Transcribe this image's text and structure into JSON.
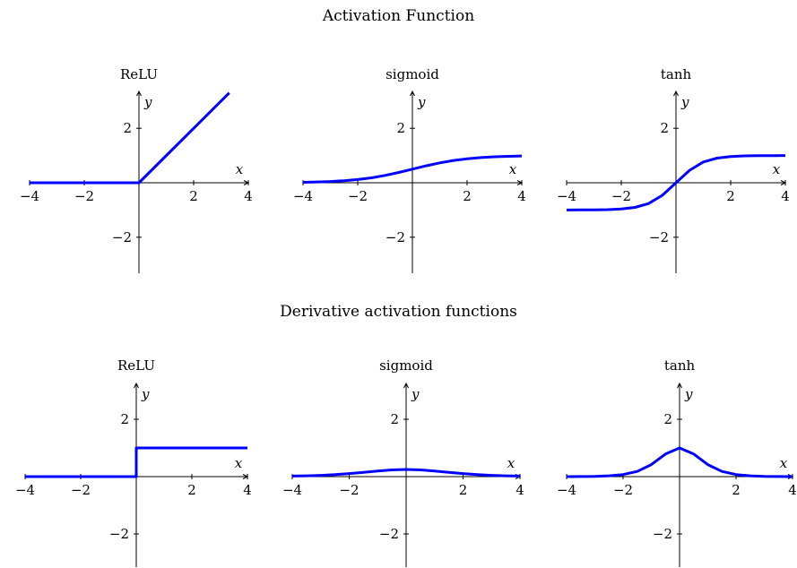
{
  "figure": {
    "row_titles": [
      "Activation Function",
      "Derivative activation functions"
    ]
  },
  "chart_data": [
    {
      "type": "line",
      "row": 0,
      "col": 0,
      "title": "ReLU",
      "xlabel": "x",
      "ylabel": "y",
      "xlim": [
        -4,
        4
      ],
      "ylim": [
        -3.3,
        3.4
      ],
      "xticks": [
        -4,
        -2,
        2,
        4
      ],
      "yticks": [
        -2,
        2
      ],
      "series": [
        {
          "color": "#0000ff",
          "x": [
            -4,
            0,
            3.3
          ],
          "y": [
            0,
            0,
            3.3
          ]
        }
      ]
    },
    {
      "type": "line",
      "row": 0,
      "col": 1,
      "title": "sigmoid",
      "xlabel": "x",
      "ylabel": "y",
      "xlim": [
        -4,
        4
      ],
      "ylim": [
        -3.3,
        3.4
      ],
      "xticks": [
        -4,
        -2,
        2,
        4
      ],
      "yticks": [
        -2,
        2
      ],
      "series": [
        {
          "color": "#0000ff",
          "x": [
            -4,
            -3.5,
            -3,
            -2.5,
            -2,
            -1.5,
            -1,
            -0.5,
            0,
            0.5,
            1,
            1.5,
            2,
            2.5,
            3,
            3.5,
            4
          ],
          "y": [
            0.018,
            0.029,
            0.047,
            0.076,
            0.119,
            0.182,
            0.269,
            0.378,
            0.5,
            0.622,
            0.731,
            0.818,
            0.881,
            0.924,
            0.953,
            0.971,
            0.982
          ]
        }
      ]
    },
    {
      "type": "line",
      "row": 0,
      "col": 2,
      "title": "tanh",
      "xlabel": "x",
      "ylabel": "y",
      "xlim": [
        -4,
        4
      ],
      "ylim": [
        -3.3,
        3.4
      ],
      "xticks": [
        -4,
        -2,
        2,
        4
      ],
      "yticks": [
        -2,
        2
      ],
      "series": [
        {
          "color": "#0000ff",
          "x": [
            -4,
            -3.5,
            -3,
            -2.5,
            -2,
            -1.5,
            -1,
            -0.5,
            0,
            0.5,
            1,
            1.5,
            2,
            2.5,
            3,
            3.5,
            4
          ],
          "y": [
            -0.999,
            -0.998,
            -0.995,
            -0.987,
            -0.964,
            -0.905,
            -0.762,
            -0.462,
            0,
            0.462,
            0.762,
            0.905,
            0.964,
            0.987,
            0.995,
            0.998,
            0.999
          ]
        }
      ]
    },
    {
      "type": "line",
      "row": 1,
      "col": 0,
      "title": "ReLU",
      "xlabel": "x",
      "ylabel": "y",
      "xlim": [
        -4,
        4
      ],
      "ylim": [
        -3.3,
        3.4
      ],
      "xticks": [
        -4,
        -2,
        2,
        4
      ],
      "yticks": [
        -2,
        2
      ],
      "series": [
        {
          "color": "#0000ff",
          "x": [
            -4,
            0,
            0,
            4
          ],
          "y": [
            0,
            0,
            1,
            1
          ]
        }
      ]
    },
    {
      "type": "line",
      "row": 1,
      "col": 1,
      "title": "sigmoid",
      "xlabel": "x",
      "ylabel": "y",
      "xlim": [
        -4,
        4
      ],
      "ylim": [
        -3.3,
        3.4
      ],
      "xticks": [
        -4,
        -2,
        2,
        4
      ],
      "yticks": [
        -2,
        2
      ],
      "series": [
        {
          "color": "#0000ff",
          "x": [
            -4,
            -3.5,
            -3,
            -2.5,
            -2,
            -1.5,
            -1,
            -0.5,
            0,
            0.5,
            1,
            1.5,
            2,
            2.5,
            3,
            3.5,
            4
          ],
          "y": [
            0.018,
            0.029,
            0.045,
            0.07,
            0.105,
            0.149,
            0.197,
            0.235,
            0.25,
            0.235,
            0.197,
            0.149,
            0.105,
            0.07,
            0.045,
            0.029,
            0.018
          ]
        }
      ]
    },
    {
      "type": "line",
      "row": 1,
      "col": 2,
      "title": "tanh",
      "xlabel": "x",
      "ylabel": "y",
      "xlim": [
        -4,
        4
      ],
      "ylim": [
        -3.3,
        3.4
      ],
      "xticks": [
        -4,
        -2,
        2,
        4
      ],
      "yticks": [
        -2,
        2
      ],
      "series": [
        {
          "color": "#0000ff",
          "x": [
            -4,
            -3.5,
            -3,
            -2.5,
            -2,
            -1.5,
            -1,
            -0.5,
            0,
            0.5,
            1,
            1.5,
            2,
            2.5,
            3,
            3.5,
            4
          ],
          "y": [
            0.001,
            0.004,
            0.01,
            0.027,
            0.071,
            0.181,
            0.42,
            0.786,
            1,
            0.786,
            0.42,
            0.181,
            0.071,
            0.027,
            0.01,
            0.004,
            0.001
          ]
        }
      ]
    }
  ]
}
